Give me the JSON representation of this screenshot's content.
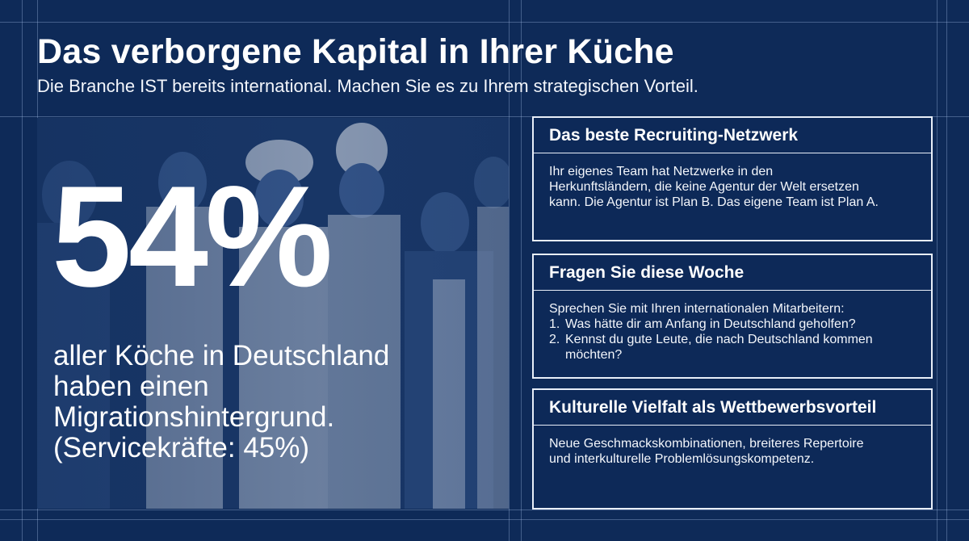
{
  "header": {
    "title": "Das verborgene Kapital in Ihrer Küche",
    "subtitle": "Die Branche IST bereits international. Machen Sie es zu Ihrem strategischen Vorteil."
  },
  "stat": {
    "value": "54%",
    "caption_lines": [
      "aller Köche in Deutschland",
      "haben einen",
      "Migrationshintergrund.",
      "(Servicekräfte: 45%)"
    ]
  },
  "cards": [
    {
      "title": "Das beste Recruiting-Netzwerk",
      "lines": [
        "Ihr eigenes Team hat Netzwerke in den",
        "Herkunftsländern, die keine Agentur der Welt ersetzen",
        "kann. Die Agentur ist Plan B. Das eigene Team ist Plan A."
      ]
    },
    {
      "title": "Fragen Sie diese Woche",
      "intro": "Sprechen Sie mit Ihren internationalen Mitarbeitern:",
      "items": [
        {
          "num": "1.",
          "text": "Was hätte dir am Anfang in Deutschland geholfen?"
        },
        {
          "num": "2.",
          "text": "Kennst du gute Leute, die nach Deutschland kommen möchten?"
        }
      ]
    },
    {
      "title": "Kulturelle Vielfalt als Wettbewerbsvorteil",
      "lines": [
        "Neue Geschmackskombinationen, breiteres Repertoire",
        "und interkulturelle Problemlösungskompetenz."
      ]
    }
  ],
  "colors": {
    "background": "#0e2a58",
    "text": "#ffffff",
    "border": "#e8eef8"
  }
}
